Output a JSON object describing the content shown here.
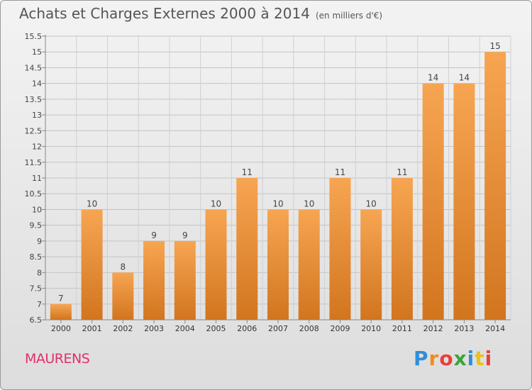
{
  "title": "Achats et Charges Externes 2000 à 2014",
  "subtitle": "(en milliers d'€)",
  "commune": "MAURENS",
  "logo": "Proxiti",
  "chart_data": {
    "type": "bar",
    "title": "Achats et Charges Externes 2000 à 2014",
    "subtitle": "(en milliers d'€)",
    "xlabel": "",
    "ylabel": "",
    "categories": [
      "2000",
      "2001",
      "2002",
      "2003",
      "2004",
      "2005",
      "2006",
      "2007",
      "2008",
      "2009",
      "2010",
      "2011",
      "2012",
      "2013",
      "2014"
    ],
    "values": [
      7,
      10,
      8,
      9,
      9,
      10,
      11,
      10,
      10,
      11,
      10,
      11,
      14,
      14,
      15
    ],
    "ylim": [
      6.5,
      15.5
    ],
    "yticks": [
      "6.5",
      "7",
      "7.5",
      "8",
      "8.5",
      "9",
      "9.5",
      "10",
      "10.5",
      "11",
      "11.5",
      "12",
      "12.5",
      "13",
      "13.5",
      "14",
      "14.5",
      "15",
      "15.5"
    ],
    "grid": true,
    "bar_color_top": "#f7a552",
    "bar_color_bottom": "#d2751f"
  }
}
